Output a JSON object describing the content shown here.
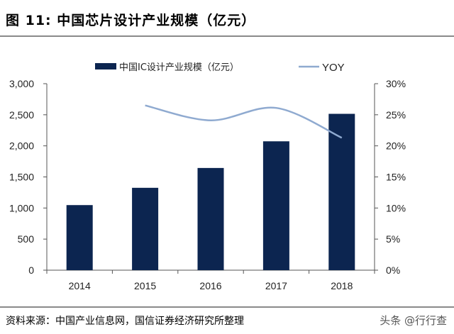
{
  "figure": {
    "title": "图  11:  中国芯片设计产业规模（亿元）"
  },
  "source": {
    "text": "资料来源：中国产业信息网，国信证券经济研究所整理",
    "watermark": "头条 @行行查"
  },
  "colors": {
    "bar": "#0c2550",
    "line": "#8faad0",
    "axis": "#555555"
  },
  "chart_data": {
    "type": "bar",
    "categories": [
      "2014",
      "2015",
      "2016",
      "2017",
      "2018"
    ],
    "series": [
      {
        "name": "中国IC设计产业规模（亿元）",
        "type": "bar",
        "axis": "left",
        "values": [
          1047,
          1325,
          1644,
          2073,
          2515
        ]
      },
      {
        "name": "YOY",
        "type": "line",
        "axis": "right",
        "values": [
          null,
          26.5,
          24.1,
          26.1,
          21.3
        ]
      }
    ],
    "y_left": {
      "ylim": [
        0,
        3000
      ],
      "ticks": [
        "0",
        "500",
        "1,000",
        "1,500",
        "2,000",
        "2,500",
        "3,000"
      ]
    },
    "y_right": {
      "ylim": [
        0,
        30
      ],
      "ticks": [
        "0%",
        "5%",
        "10%",
        "15%",
        "20%",
        "25%",
        "30%"
      ]
    },
    "legend": "top-center",
    "grid": false
  }
}
